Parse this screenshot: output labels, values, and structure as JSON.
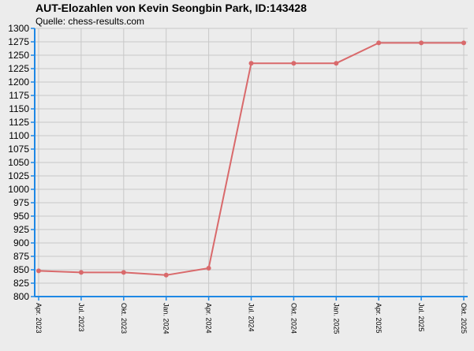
{
  "header": {
    "title": "AUT-Elozahlen von Kevin Seongbin Park, ID:143428",
    "source": "Quelle: chess-results.com"
  },
  "colors": {
    "background": "#ececec",
    "grid": "#c8c8c8",
    "axis": "#1e88e5",
    "series": "#d9696b"
  },
  "chart_data": {
    "type": "line",
    "title": "AUT-Elozahlen von Kevin Seongbin Park, ID:143428",
    "subtitle": "Quelle: chess-results.com",
    "xlabel": "",
    "ylabel": "",
    "categories": [
      "Apr. 2023",
      "Jul. 2023",
      "Okt. 2023",
      "Jan. 2024",
      "Apr. 2024",
      "Jul. 2024",
      "Okt. 2024",
      "Jan. 2025",
      "Apr. 2025",
      "Jul. 2025",
      "Okt. 2025"
    ],
    "series": [
      {
        "values": [
          848,
          845,
          845,
          840,
          853,
          1235,
          1235,
          1235,
          1273,
          1273,
          1273
        ]
      }
    ],
    "ylim": [
      800,
      1300
    ],
    "yticks": [
      800,
      825,
      850,
      875,
      900,
      925,
      950,
      975,
      1000,
      1025,
      1050,
      1075,
      1100,
      1125,
      1150,
      1175,
      1200,
      1225,
      1250,
      1275,
      1300
    ],
    "grid": true,
    "legend": "none"
  }
}
